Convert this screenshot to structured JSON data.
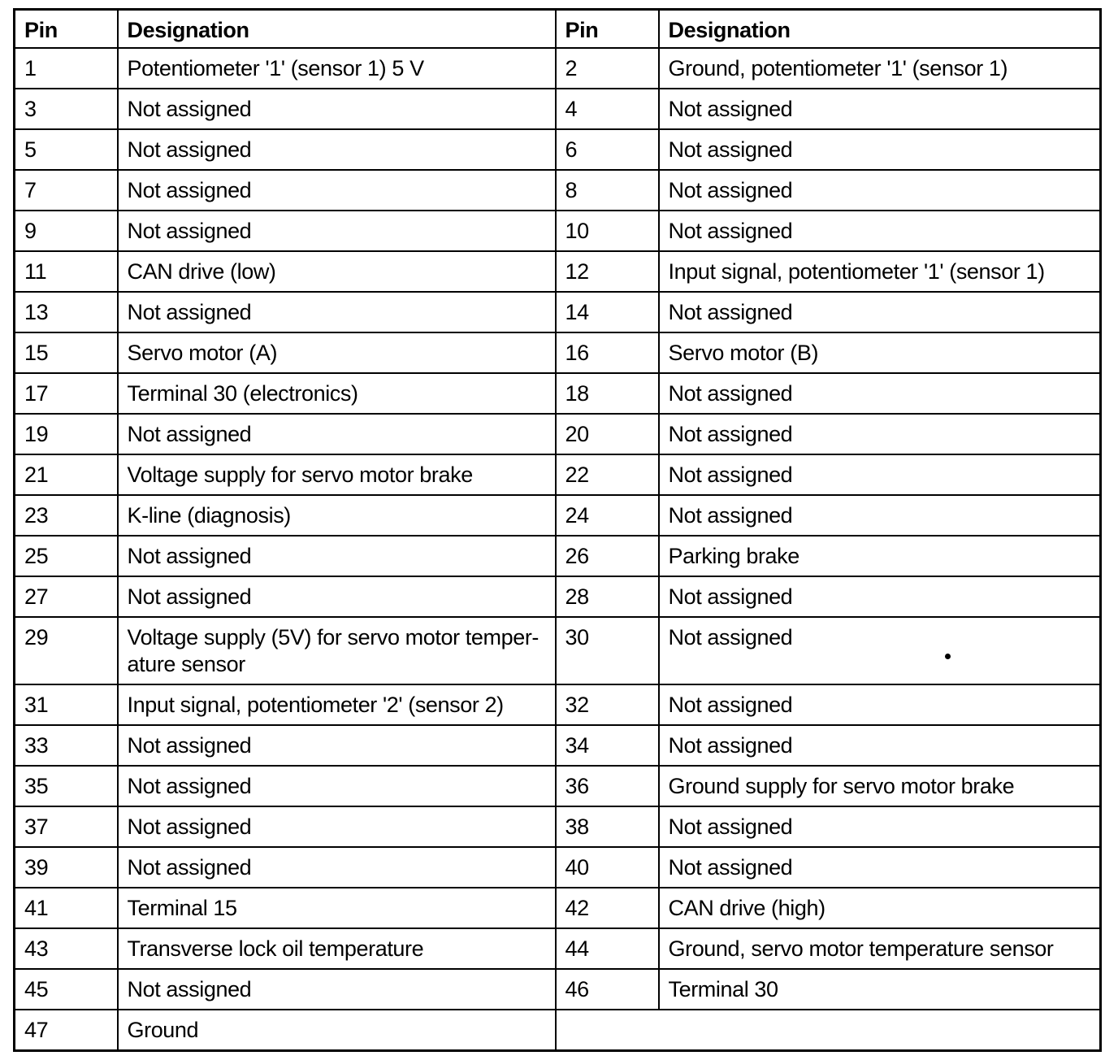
{
  "table": {
    "headers": [
      "Pin",
      "Designation",
      "Pin",
      "Designation"
    ],
    "rows": [
      {
        "pin_left": "1",
        "designation_left": "Potentiometer '1' (sensor 1) 5 V",
        "pin_right": "2",
        "designation_right": "Ground, potentiometer '1' (sensor 1)"
      },
      {
        "pin_left": "3",
        "designation_left": "Not assigned",
        "pin_right": "4",
        "designation_right": "Not assigned"
      },
      {
        "pin_left": "5",
        "designation_left": "Not assigned",
        "pin_right": "6",
        "designation_right": "Not assigned"
      },
      {
        "pin_left": "7",
        "designation_left": "Not assigned",
        "pin_right": "8",
        "designation_right": "Not assigned"
      },
      {
        "pin_left": "9",
        "designation_left": "Not assigned",
        "pin_right": "10",
        "designation_right": "Not assigned"
      },
      {
        "pin_left": "11",
        "designation_left": "CAN drive (low)",
        "pin_right": "12",
        "designation_right": "Input signal, potentiometer '1' (sensor 1)"
      },
      {
        "pin_left": "13",
        "designation_left": "Not assigned",
        "pin_right": "14",
        "designation_right": "Not assigned"
      },
      {
        "pin_left": "15",
        "designation_left": "Servo motor (A)",
        "pin_right": "16",
        "designation_right": "Servo motor (B)"
      },
      {
        "pin_left": "17",
        "designation_left": "Terminal 30 (electronics)",
        "pin_right": "18",
        "designation_right": "Not assigned"
      },
      {
        "pin_left": "19",
        "designation_left": "Not assigned",
        "pin_right": "20",
        "designation_right": "Not assigned"
      },
      {
        "pin_left": "21",
        "designation_left": "Voltage supply for servo motor brake",
        "pin_right": "22",
        "designation_right": "Not assigned"
      },
      {
        "pin_left": "23",
        "designation_left": "K-line (diagnosis)",
        "pin_right": "24",
        "designation_right": "Not assigned"
      },
      {
        "pin_left": "25",
        "designation_left": "Not assigned",
        "pin_right": "26",
        "designation_right": "Parking brake"
      },
      {
        "pin_left": "27",
        "designation_left": "Not assigned",
        "pin_right": "28",
        "designation_right": "Not assigned"
      },
      {
        "pin_left": "29",
        "designation_left": "Voltage supply (5V) for servo motor temper-\nature sensor",
        "pin_right": "30",
        "designation_right": "Not assigned",
        "tall": true
      },
      {
        "pin_left": "31",
        "designation_left": "Input signal, potentiometer '2' (sensor 2)",
        "pin_right": "32",
        "designation_right": "Not assigned"
      },
      {
        "pin_left": "33",
        "designation_left": "Not assigned",
        "pin_right": "34",
        "designation_right": "Not assigned"
      },
      {
        "pin_left": "35",
        "designation_left": "Not assigned",
        "pin_right": "36",
        "designation_right": "Ground supply for servo motor brake"
      },
      {
        "pin_left": "37",
        "designation_left": "Not assigned",
        "pin_right": "38",
        "designation_right": "Not assigned"
      },
      {
        "pin_left": "39",
        "designation_left": "Not assigned",
        "pin_right": "40",
        "designation_right": "Not assigned"
      },
      {
        "pin_left": "41",
        "designation_left": "Terminal 15",
        "pin_right": "42",
        "designation_right": "CAN drive (high)"
      },
      {
        "pin_left": "43",
        "designation_left": "Transverse lock oil temperature",
        "pin_right": "44",
        "designation_right": "Ground, servo motor temperature sensor"
      },
      {
        "pin_left": "45",
        "designation_left": "Not assigned",
        "pin_right": "46",
        "designation_right": "Terminal 30"
      },
      {
        "pin_left": "47",
        "designation_left": "Ground",
        "pin_right": "",
        "designation_right": "",
        "merged_right": true
      }
    ]
  },
  "colors": {
    "border": "#000000",
    "text": "#000000",
    "background": "#ffffff"
  },
  "artifact": {
    "speck": "ink speck in pin 30 designation cell"
  }
}
